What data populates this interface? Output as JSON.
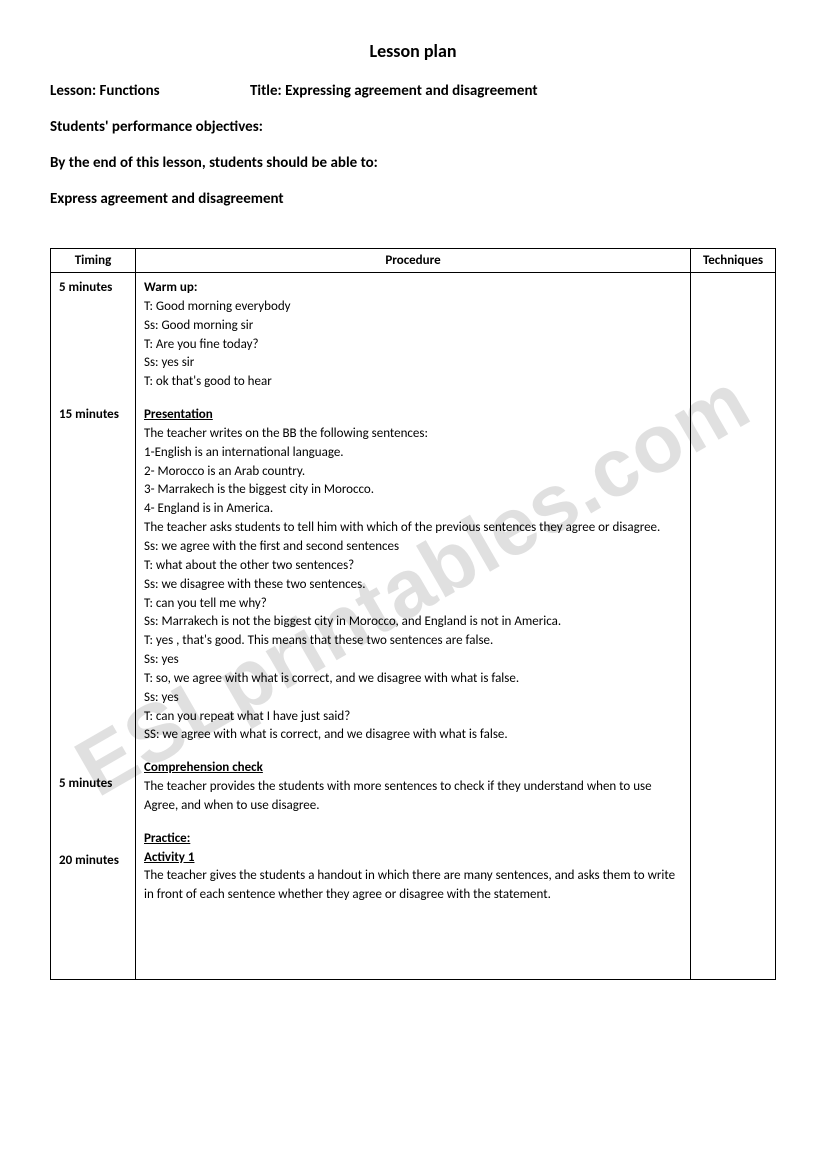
{
  "watermark": "ESLprintables.com",
  "mainTitle": "Lesson plan",
  "lessonLabel": "Lesson: Functions",
  "titleLabel": "Title: Expressing agreement and disagreement",
  "objectivesHeading": "Students' performance objectives:",
  "objectivesIntro": "By the end of this lesson, students should be able to:",
  "objectivesText": "Express agreement and disagreement",
  "columns": {
    "timing": "Timing",
    "procedure": "Procedure",
    "techniques": "Techniques"
  },
  "sections": [
    {
      "timing": "5 minutes",
      "heading": "Warm up:",
      "headingClass": "warm-up-heading",
      "lines": [
        "T: Good morning everybody",
        "Ss: Good morning sir",
        "T: Are you fine today?",
        "Ss: yes sir",
        "T: ok that's good to hear"
      ]
    },
    {
      "timing": "15 minutes",
      "heading": "Presentation",
      "headingClass": "section-heading",
      "lines": [
        "The teacher writes on the BB the following sentences:",
        "1-English is an international language.",
        "2- Morocco is an Arab country.",
        "3- Marrakech is the biggest city in Morocco.",
        "4- England is in America.",
        "The teacher asks students to tell him with which of the previous sentences they agree or disagree.",
        "Ss: we agree with the first and second sentences",
        "T: what about the other two sentences?",
        "Ss: we disagree with these two sentences.",
        "T: can you tell me why?",
        "Ss: Marrakech is not the biggest city in Morocco, and England is not in America.",
        "T: yes , that's good. This means that these two sentences are false.",
        "Ss: yes",
        "T: so, we agree with what is correct, and we disagree with what is false.",
        "Ss: yes",
        "T: can you repeat what I have just said?",
        "SS: we agree with what is correct, and we disagree with what is false."
      ]
    },
    {
      "timing": "5  minutes",
      "heading": "Comprehension check",
      "headingClass": "section-heading",
      "lines": [
        "The teacher provides the students with more sentences to check if they understand when to use Agree, and when to use disagree."
      ]
    },
    {
      "timing": "20 minutes",
      "heading": "Practice:",
      "headingClass": "section-heading",
      "subheading": "Activity 1",
      "lines": [
        "The teacher gives the students a handout in which there are many sentences, and asks them to write in front of each sentence whether they agree or disagree with the statement."
      ]
    }
  ]
}
